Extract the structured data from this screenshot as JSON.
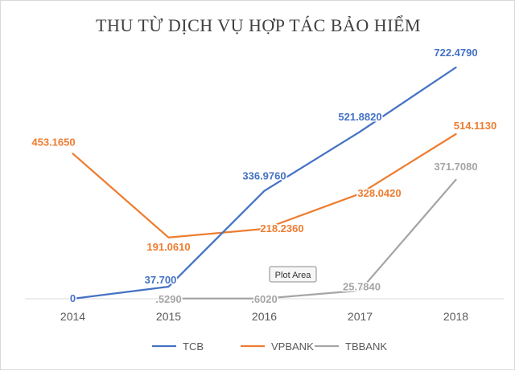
{
  "chart_data": {
    "type": "line",
    "title": "THU TỪ DỊCH VỤ HỢP TÁC BẢO HIỂM",
    "xlabel": "",
    "ylabel": "",
    "categories": [
      "2014",
      "2015",
      "2016",
      "2017",
      "2018"
    ],
    "ylim": [
      0,
      760
    ],
    "grid": false,
    "legend_position": "bottom",
    "series": [
      {
        "name": "TCB",
        "color": "#4472C4",
        "values": [
          0,
          37.7,
          336.976,
          521.882,
          722.479
        ],
        "labels": [
          "0",
          "37.700",
          "336.9760",
          "521.8820",
          "722.4790"
        ]
      },
      {
        "name": "VPBANK",
        "color": "#ED7D31",
        "values": [
          453.165,
          191.061,
          218.236,
          328.042,
          514.113
        ],
        "labels": [
          "453.1650",
          "191.0610",
          "218.2360",
          "328.0420",
          "514.1130"
        ]
      },
      {
        "name": "TBBANK",
        "color": "#A5A5A5",
        "values": [
          null,
          0.529,
          0.602,
          25.784,
          371.708
        ],
        "labels": [
          "",
          ".5290",
          ".6020",
          "25.7840",
          "371.7080"
        ]
      }
    ],
    "tooltip": "Plot Area"
  }
}
